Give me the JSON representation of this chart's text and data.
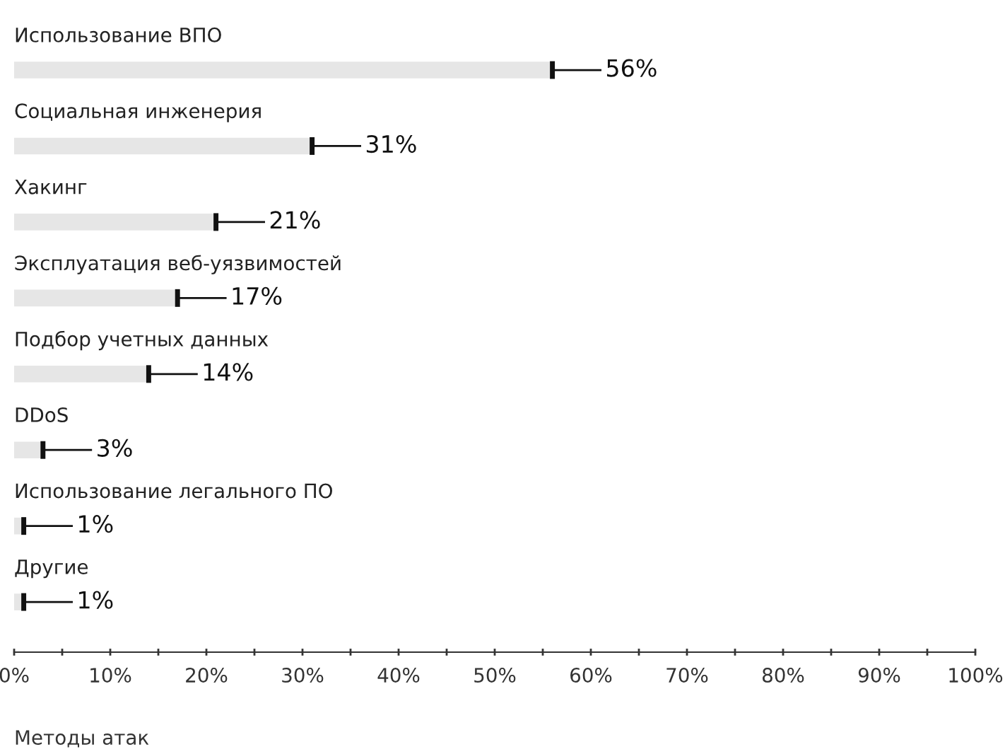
{
  "chart_data": {
    "type": "bar",
    "orientation": "horizontal",
    "xlabel": "Методы атак",
    "categories": [
      "Использование ВПО",
      "Социальная инженерия",
      "Хакинг",
      "Эксплуатация веб-уязвимостей",
      "Подбор учетных данных",
      "DDoS",
      "Использование легального ПО",
      "Другие"
    ],
    "values": [
      56,
      31,
      21,
      17,
      14,
      3,
      1,
      1
    ],
    "value_labels": [
      "56%",
      "31%",
      "21%",
      "17%",
      "14%",
      "3%",
      "1%",
      "1%"
    ],
    "color": "#e6e6e6",
    "xlim": [
      0,
      100
    ],
    "xticks": [
      {
        "value": 0,
        "label": "0%"
      },
      {
        "value": 5,
        "label": null
      },
      {
        "value": 10,
        "label": "10%"
      },
      {
        "value": 15,
        "label": null
      },
      {
        "value": 20,
        "label": "20%"
      },
      {
        "value": 25,
        "label": null
      },
      {
        "value": 30,
        "label": "30%"
      },
      {
        "value": 35,
        "label": null
      },
      {
        "value": 40,
        "label": "40%"
      },
      {
        "value": 45,
        "label": null
      },
      {
        "value": 50,
        "label": "50%"
      },
      {
        "value": 55,
        "label": null
      },
      {
        "value": 60,
        "label": "60%"
      },
      {
        "value": 65,
        "label": null
      },
      {
        "value": 70,
        "label": "70%"
      },
      {
        "value": 75,
        "label": null
      },
      {
        "value": 80,
        "label": "80%"
      },
      {
        "value": 85,
        "label": null
      },
      {
        "value": 90,
        "label": "90%"
      },
      {
        "value": 95,
        "label": null
      },
      {
        "value": 100,
        "label": "100%"
      }
    ],
    "grid": false
  }
}
